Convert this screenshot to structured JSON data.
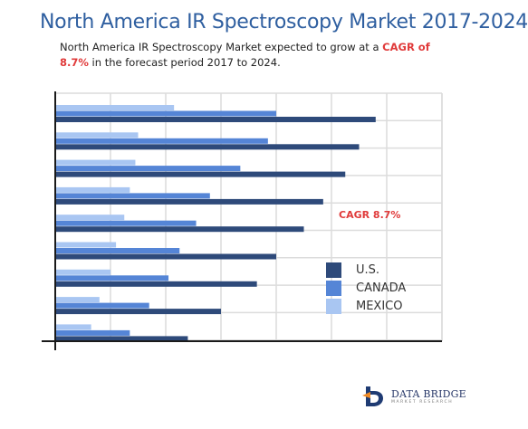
{
  "title": "North America IR Spectroscopy Market 2017-2024",
  "subtitle": {
    "before": "North America IR Spectroscopy Market expected to grow at a ",
    "highlight": "CAGR of 8.7%",
    "after": " in the forecast period 2017 to 2024."
  },
  "colors": {
    "us": "#2e4a7a",
    "canada": "#5585d6",
    "mexico": "#a9c6f2",
    "accent": "#e03a3a"
  },
  "chart_data": {
    "type": "bar",
    "orientation": "horizontal",
    "categories": [
      "",
      "",
      "",
      "",
      "",
      "",
      "",
      "",
      ""
    ],
    "xlim": [
      0,
      7
    ],
    "grid": true,
    "legend_position": "right",
    "annotation": "CAGR  8.7%",
    "series": [
      {
        "name": "U.S.",
        "values": [
          5.8,
          5.5,
          5.25,
          4.85,
          4.5,
          4.0,
          3.65,
          3.0,
          2.4
        ]
      },
      {
        "name": "CANADA",
        "values": [
          4.0,
          3.85,
          3.35,
          2.8,
          2.55,
          2.25,
          2.05,
          1.7,
          1.35
        ]
      },
      {
        "name": "MEXICO",
        "values": [
          2.15,
          1.5,
          1.45,
          1.35,
          1.25,
          1.1,
          1.0,
          0.8,
          0.65
        ]
      }
    ]
  },
  "brand": {
    "name": "DATA BRIDGE",
    "tagline": "MARKET RESEARCH"
  }
}
